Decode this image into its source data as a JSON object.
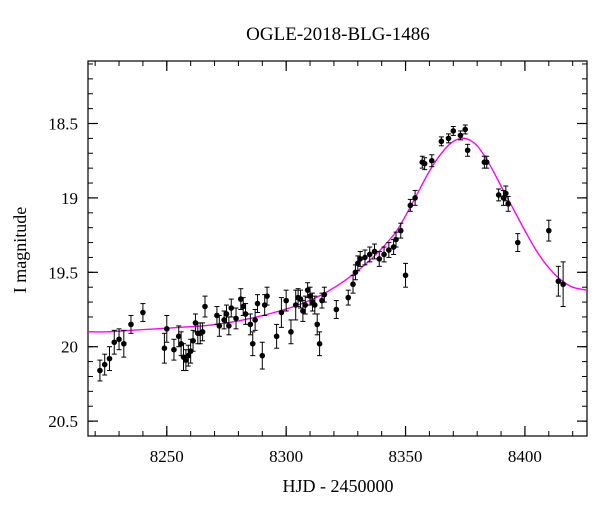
{
  "chart_data": {
    "type": "scatter",
    "title": "OGLE-2018-BLG-1486",
    "xlabel": "HJD - 2450000",
    "ylabel": "I magnitude",
    "xlim": [
      8217,
      8426
    ],
    "ylim": [
      20.6,
      18.08
    ],
    "y_inverted": true,
    "x_ticks": [
      8250,
      8300,
      8350,
      8400
    ],
    "x_tick_labels": [
      "8250",
      "8300",
      "8350",
      "8400"
    ],
    "y_ticks": [
      18.5,
      19,
      19.5,
      20,
      20.5
    ],
    "y_tick_labels": [
      "18.5",
      "19",
      "19.5",
      "20",
      "20.5"
    ],
    "grid": false,
    "legend": "none",
    "colors": {
      "points": "#000000",
      "model": "#ff00ff"
    },
    "series": [
      {
        "kind": "points_with_errorbars",
        "x": [
          8222,
          8224,
          8226,
          8228,
          8230,
          8232,
          8235,
          8240,
          8249,
          8250,
          8253,
          8255,
          8256,
          8257,
          8258,
          8259,
          8260,
          8261,
          8262,
          8263,
          8264,
          8265,
          8266,
          8271,
          8272,
          8274,
          8275,
          8276,
          8277,
          8279,
          8281,
          8282,
          8283,
          8285,
          8286,
          8287,
          8288,
          8290,
          8291,
          8292,
          8296,
          8298,
          8300,
          8302,
          8304,
          8305,
          8306,
          8307,
          8308,
          8309,
          8310,
          8311,
          8312,
          8313,
          8314,
          8315,
          8316,
          8321,
          8326,
          8328,
          8329,
          8330,
          8331,
          8333,
          8335,
          8337,
          8339,
          8341,
          8343,
          8345,
          8346,
          8348,
          8350,
          8352,
          8354,
          8357,
          8358,
          8361,
          8365,
          8368,
          8370,
          8373,
          8375,
          8376,
          8383,
          8384,
          8389,
          8391,
          8392,
          8393,
          8397,
          8410,
          8414,
          8416
        ],
        "y": [
          20.16,
          20.12,
          20.08,
          19.97,
          19.95,
          19.98,
          19.85,
          19.77,
          20.01,
          19.88,
          20.02,
          19.93,
          19.98,
          20.07,
          20.09,
          20.06,
          20.03,
          19.96,
          19.84,
          19.91,
          19.91,
          19.9,
          19.73,
          19.79,
          19.86,
          19.82,
          19.78,
          19.86,
          19.74,
          19.81,
          19.68,
          19.73,
          19.78,
          19.85,
          19.98,
          19.82,
          19.71,
          20.06,
          19.72,
          19.66,
          19.93,
          19.77,
          19.69,
          19.9,
          19.72,
          19.67,
          19.68,
          19.76,
          19.72,
          19.62,
          19.66,
          19.7,
          19.72,
          19.85,
          19.98,
          19.69,
          19.65,
          19.75,
          19.67,
          19.58,
          19.5,
          19.44,
          19.41,
          19.4,
          19.38,
          19.36,
          19.41,
          19.38,
          19.35,
          19.33,
          19.28,
          19.22,
          19.52,
          19.05,
          19.0,
          18.76,
          18.77,
          18.75,
          18.62,
          18.6,
          18.55,
          18.58,
          18.54,
          18.68,
          18.76,
          18.76,
          18.98,
          19.0,
          18.97,
          19.04,
          19.3,
          19.22,
          19.56,
          19.58
        ],
        "err": [
          0.07,
          0.07,
          0.08,
          0.08,
          0.07,
          0.09,
          0.06,
          0.06,
          0.1,
          0.09,
          0.07,
          0.07,
          0.08,
          0.09,
          0.07,
          0.07,
          0.08,
          0.07,
          0.06,
          0.07,
          0.07,
          0.06,
          0.07,
          0.06,
          0.07,
          0.06,
          0.06,
          0.06,
          0.06,
          0.07,
          0.07,
          0.06,
          0.07,
          0.07,
          0.08,
          0.07,
          0.06,
          0.09,
          0.07,
          0.06,
          0.08,
          0.1,
          0.07,
          0.08,
          0.1,
          0.06,
          0.06,
          0.07,
          0.06,
          0.05,
          0.06,
          0.06,
          0.06,
          0.07,
          0.08,
          0.05,
          0.05,
          0.06,
          0.05,
          0.06,
          0.05,
          0.05,
          0.05,
          0.05,
          0.05,
          0.05,
          0.05,
          0.05,
          0.05,
          0.05,
          0.05,
          0.05,
          0.08,
          0.04,
          0.05,
          0.04,
          0.04,
          0.04,
          0.03,
          0.03,
          0.03,
          0.03,
          0.03,
          0.04,
          0.04,
          0.04,
          0.04,
          0.05,
          0.05,
          0.05,
          0.06,
          0.07,
          0.1,
          0.15
        ]
      },
      {
        "kind": "model_curve",
        "x": [
          8217,
          8225,
          8235,
          8245,
          8255,
          8265,
          8275,
          8285,
          8295,
          8305,
          8315,
          8325,
          8335,
          8345,
          8350,
          8355,
          8360,
          8365,
          8370,
          8375,
          8380,
          8385,
          8390,
          8395,
          8400,
          8405,
          8410,
          8415,
          8420,
          8426
        ],
        "y": [
          19.9,
          19.9,
          19.89,
          19.88,
          19.87,
          19.86,
          19.84,
          19.81,
          19.77,
          19.72,
          19.65,
          19.55,
          19.42,
          19.25,
          19.12,
          18.97,
          18.82,
          18.7,
          18.62,
          18.6,
          18.65,
          18.77,
          18.92,
          19.07,
          19.22,
          19.36,
          19.47,
          19.55,
          19.6,
          19.62
        ]
      }
    ]
  }
}
